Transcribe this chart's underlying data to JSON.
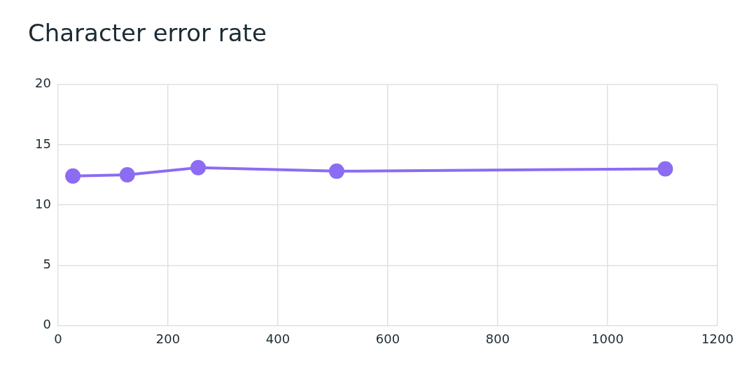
{
  "chart_data": {
    "type": "line",
    "title": "Character error rate",
    "x": [
      27,
      126,
      255,
      507,
      1105
    ],
    "series": [
      {
        "color": "#8b6cf2",
        "values": [
          12.4,
          12.5,
          13.1,
          12.8,
          13.0
        ]
      }
    ],
    "xlim": [
      0,
      1200
    ],
    "xticks": [
      0,
      200,
      400,
      600,
      800,
      1000,
      1200
    ],
    "ylim": [
      0,
      20
    ],
    "yticks": [
      0,
      5,
      10,
      15,
      20
    ],
    "grid": true,
    "legend": false,
    "marker": "circle",
    "line_style": "solid"
  }
}
